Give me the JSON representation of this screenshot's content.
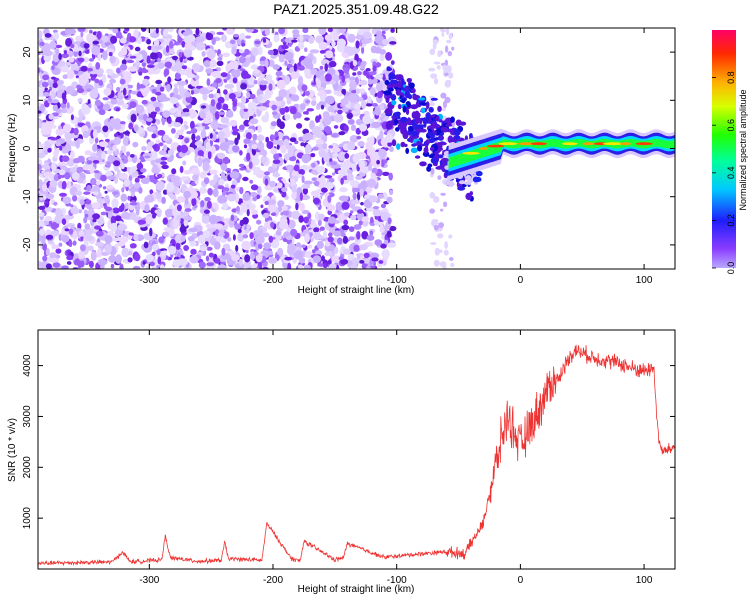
{
  "title": "PAZ1.2025.351.09.48.G22",
  "colors": {
    "snr_line": "#ee3333",
    "speckle_dark": "#6a1ee0",
    "speckle_light": "#d9c6ff"
  },
  "chart_data": [
    {
      "type": "heatmap",
      "name": "spectrogram",
      "xlabel": "Height of straight line (km)",
      "ylabel": "Frequency (Hz)",
      "xlim": [
        -390,
        125
      ],
      "ylim": [
        -25,
        25
      ],
      "xticks": [
        "-300",
        "-200",
        "-100",
        "0",
        "100"
      ],
      "yticks": [
        "-20",
        "-10",
        "0",
        "10",
        "20"
      ],
      "colorbar": {
        "label": "Normalized spectral amplitude",
        "range": [
          0,
          1
        ],
        "ticks": [
          "0.0",
          "0.2",
          "0.4",
          "0.6",
          "0.8"
        ]
      },
      "notes": {
        "noise_region_km": [
          -390,
          -105
        ],
        "gap_km": [
          -100,
          -60
        ],
        "signal_start_km": -105,
        "carrier_frequency_hz": 1
      }
    },
    {
      "type": "line",
      "name": "snr",
      "xlabel": "Height of straight line (km)",
      "ylabel": "SNR (10 * v/v)",
      "xlim": [
        -390,
        125
      ],
      "ylim": [
        0,
        4700
      ],
      "xticks": [
        "-300",
        "-200",
        "-100",
        "0",
        "100"
      ],
      "yticks": [
        "1000",
        "2000",
        "3000",
        "4000"
      ],
      "series": [
        {
          "name": "SNR",
          "x": [
            -390,
            -330,
            -322,
            -315,
            -290,
            -287,
            -283,
            -260,
            -242,
            -239,
            -236,
            -215,
            -209,
            -205,
            -185,
            -178,
            -175,
            -150,
            -143,
            -140,
            -110,
            -80,
            -60,
            -45,
            -40,
            -30,
            -25,
            -20,
            -15,
            -10,
            -5,
            0,
            10,
            20,
            25,
            30,
            35,
            40,
            45,
            50,
            55,
            60,
            70,
            80,
            90,
            100,
            108,
            110,
            112,
            115,
            125
          ],
          "values": [
            110,
            140,
            330,
            140,
            180,
            650,
            220,
            150,
            170,
            520,
            200,
            180,
            170,
            900,
            200,
            160,
            550,
            180,
            220,
            500,
            230,
            300,
            340,
            300,
            500,
            900,
            1500,
            2000,
            2600,
            3000,
            2700,
            2400,
            2900,
            3400,
            3700,
            3700,
            3950,
            4200,
            4300,
            4250,
            4200,
            4150,
            4100,
            4050,
            3950,
            3900,
            3950,
            3100,
            2500,
            2300,
            2400
          ]
        }
      ]
    }
  ]
}
